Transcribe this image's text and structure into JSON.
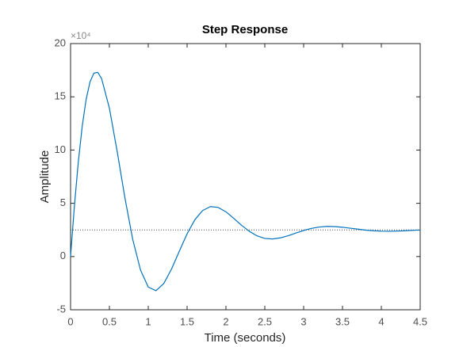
{
  "chart_data": {
    "type": "line",
    "title": "Step Response",
    "xlabel": "Time (seconds)",
    "ylabel": "Amplitude",
    "y_exponent": "×10⁴",
    "x": [
      0,
      0.05,
      0.1,
      0.15,
      0.2,
      0.25,
      0.3,
      0.35,
      0.4,
      0.5,
      0.6,
      0.7,
      0.8,
      0.9,
      1.0,
      1.1,
      1.2,
      1.3,
      1.4,
      1.5,
      1.6,
      1.7,
      1.8,
      1.9,
      2.0,
      2.1,
      2.2,
      2.3,
      2.4,
      2.5,
      2.6,
      2.7,
      2.8,
      2.9,
      3.0,
      3.1,
      3.2,
      3.3,
      3.4,
      3.5,
      3.6,
      3.7,
      3.8,
      3.9,
      4.0,
      4.1,
      4.2,
      4.3,
      4.4,
      4.5
    ],
    "values": [
      0,
      4.79,
      8.9,
      12.23,
      14.74,
      16.39,
      17.22,
      17.3,
      16.7,
      13.93,
      9.87,
      5.49,
      1.61,
      -1.26,
      -2.87,
      -3.21,
      -2.53,
      -1.17,
      0.51,
      2.13,
      3.46,
      4.32,
      4.69,
      4.61,
      4.2,
      3.59,
      2.94,
      2.37,
      1.94,
      1.7,
      1.65,
      1.75,
      1.95,
      2.2,
      2.45,
      2.64,
      2.77,
      2.83,
      2.81,
      2.75,
      2.66,
      2.57,
      2.48,
      2.42,
      2.38,
      2.37,
      2.39,
      2.42,
      2.46,
      2.49
    ],
    "color": "#0072bd",
    "final_value": 2.5,
    "xlim": [
      0,
      4.5
    ],
    "xticks": [
      0,
      0.5,
      1,
      1.5,
      2,
      2.5,
      3,
      3.5,
      4,
      4.5
    ],
    "ylim": [
      -5,
      20
    ],
    "yticks": [
      -5,
      0,
      5,
      10,
      15,
      20
    ]
  }
}
